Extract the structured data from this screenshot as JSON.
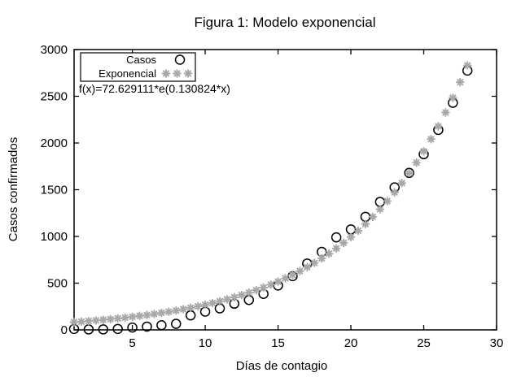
{
  "colors": {
    "background": "#ffffff",
    "axis": "#000000",
    "text": "#000000",
    "casos_marker": "#000000",
    "exponencial_marker": "#a8a8a8"
  },
  "chart_data": {
    "type": "scatter",
    "title": "Figura 1: Modelo exponencial",
    "xlabel": "Días de contagio",
    "ylabel": "Casos confirmados",
    "xlim": [
      1,
      30
    ],
    "ylim": [
      0,
      3000
    ],
    "x_ticks": [
      5,
      10,
      15,
      20,
      25,
      30
    ],
    "y_ticks": [
      0,
      500,
      1000,
      1500,
      2000,
      2500,
      3000
    ],
    "grid": false,
    "legend_position": "top-left-inside",
    "annotation": "f(x)=72.629111*e(0.130824*x)",
    "series": [
      {
        "name": "Casos",
        "marker": "open-circle",
        "color": "#000000",
        "x": [
          1,
          2,
          3,
          4,
          5,
          6,
          7,
          8,
          9,
          10,
          11,
          12,
          13,
          14,
          15,
          16,
          17,
          18,
          19,
          20,
          21,
          22,
          23,
          24,
          25,
          26,
          27,
          28
        ],
        "y": [
          10,
          5,
          5,
          10,
          25,
          35,
          50,
          65,
          155,
          195,
          230,
          280,
          320,
          385,
          475,
          575,
          710,
          835,
          990,
          1075,
          1210,
          1370,
          1525,
          1680,
          1880,
          2140,
          2430,
          2775
        ]
      },
      {
        "name": "Exponencial",
        "marker": "asterisk",
        "color": "#a8a8a8",
        "x": [
          1,
          1.5,
          2,
          2.5,
          3,
          3.5,
          4,
          4.5,
          5,
          5.5,
          6,
          6.5,
          7,
          7.5,
          8,
          8.5,
          9,
          9.5,
          10,
          10.5,
          11,
          11.5,
          12,
          12.5,
          13,
          13.5,
          14,
          14.5,
          15,
          15.5,
          16,
          16.5,
          17,
          17.5,
          18,
          18.5,
          19,
          19.5,
          20,
          20.5,
          21,
          21.5,
          22,
          22.5,
          23,
          23.5,
          24,
          24.5,
          25,
          25.5,
          26,
          26.5,
          27,
          27.5,
          28
        ],
        "y": [
          82.8,
          88.4,
          94.3,
          100.7,
          107.5,
          114.8,
          122.6,
          130.9,
          139.7,
          149.1,
          159.2,
          170.0,
          181.5,
          193.7,
          206.8,
          220.8,
          235.7,
          251.7,
          268.7,
          286.8,
          306.2,
          326.9,
          349.0,
          372.6,
          397.8,
          424.7,
          453.4,
          484.0,
          516.8,
          551.7,
          589.0,
          628.8,
          671.3,
          716.7,
          765.1,
          816.8,
          872.1,
          931.0,
          993.9,
          1061.1,
          1132.8,
          1209.4,
          1291.2,
          1378.4,
          1471.6,
          1571.1,
          1677.3,
          1790.7,
          1911.7,
          2040.9,
          2178.9,
          2326.2,
          2483.4,
          2651.2,
          2830.4
        ]
      }
    ]
  }
}
